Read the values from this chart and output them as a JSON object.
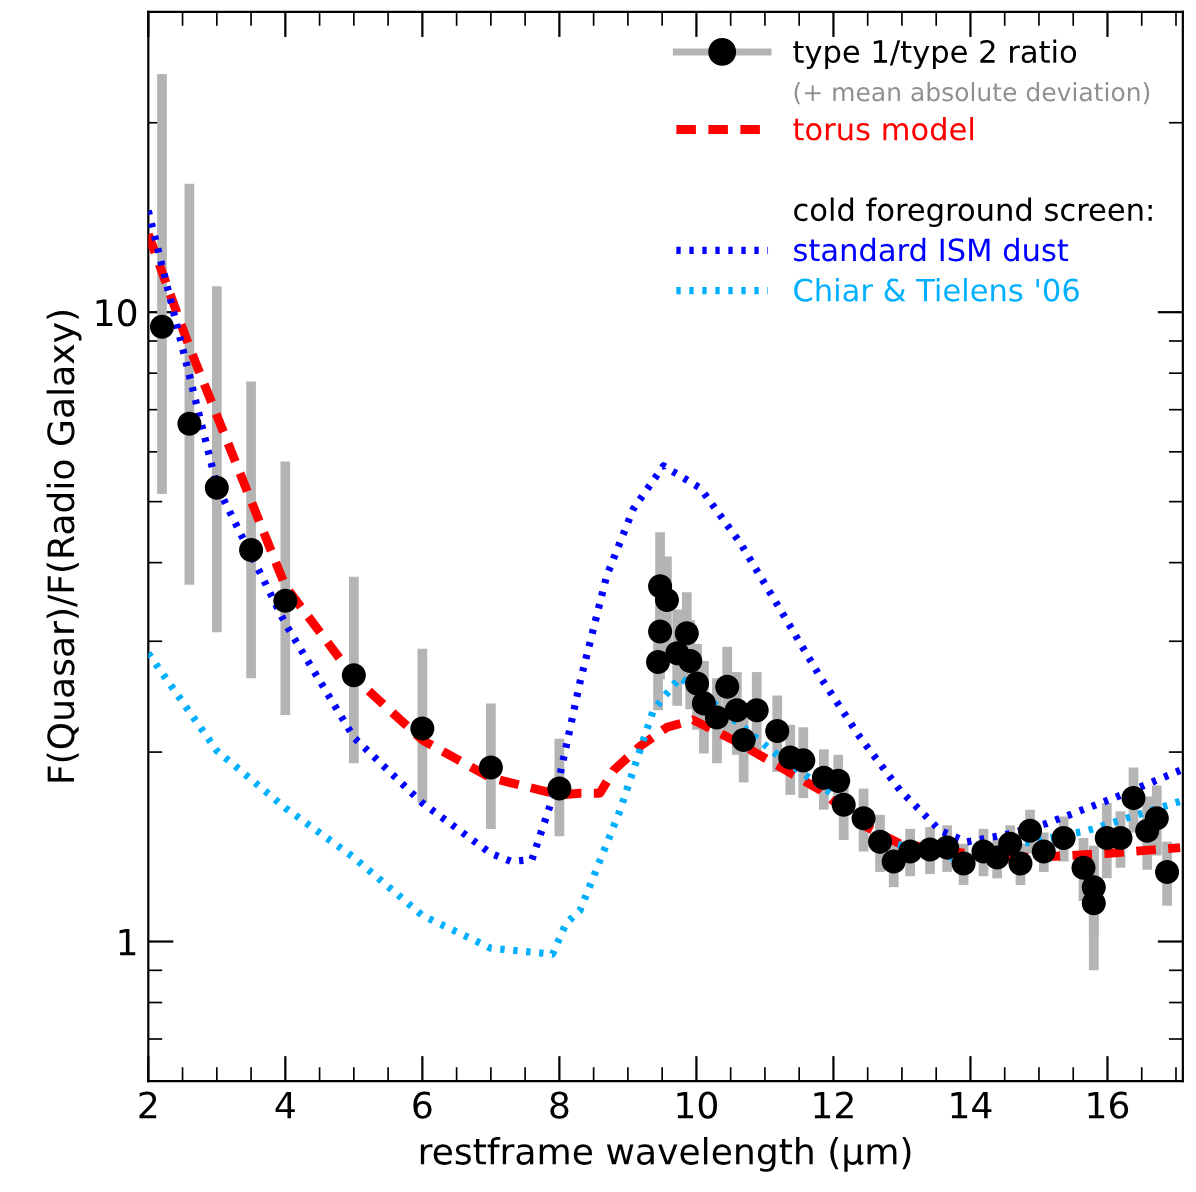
{
  "chart_data": {
    "type": "line",
    "xlabel": "restframe wavelength (μm)",
    "ylabel": "F(Quasar)/F(Radio Galaxy)",
    "log": "y",
    "xlim": [
      2,
      17.1
    ],
    "ylim": [
      0.6,
      30
    ],
    "xticks": [
      2,
      4,
      6,
      8,
      10,
      12,
      14,
      16
    ],
    "yticks": [
      1,
      10
    ],
    "grid": false,
    "legend": "top right",
    "annotations": [
      "(+ mean absolute deviation)",
      "cold foreground screen:"
    ],
    "series": [
      {
        "name": "type 1/type 2 ratio",
        "type": "scatter",
        "marker": "circle",
        "color": "#000000",
        "x": [
          2.2,
          2.6,
          3,
          3.5,
          4,
          5,
          6,
          7,
          8,
          9.47,
          9.57,
          9.47,
          9.44,
          9.72,
          9.86,
          9.91,
          10.01,
          10.11,
          10.3,
          10.45,
          10.59,
          10.69,
          10.88,
          11.18,
          11.37,
          11.56,
          11.86,
          12.07,
          12.15,
          12.44,
          12.68,
          12.88,
          13.12,
          13.41,
          13.66,
          13.9,
          14.19,
          14.39,
          14.58,
          14.73,
          14.87,
          15.07,
          15.36,
          15.65,
          15.8,
          15.8,
          15.99,
          16.19,
          16.38,
          16.58,
          16.72,
          16.87
        ],
        "values": [
          9.48,
          6.65,
          5.26,
          4.19,
          3.48,
          2.65,
          2.18,
          1.89,
          1.75,
          3.67,
          3.49,
          3.11,
          2.78,
          2.87,
          3.09,
          2.79,
          2.57,
          2.39,
          2.27,
          2.54,
          2.33,
          2.09,
          2.33,
          2.16,
          1.96,
          1.94,
          1.82,
          1.8,
          1.65,
          1.57,
          1.44,
          1.34,
          1.39,
          1.4,
          1.41,
          1.33,
          1.39,
          1.36,
          1.43,
          1.33,
          1.5,
          1.39,
          1.46,
          1.31,
          1.22,
          1.15,
          1.46,
          1.46,
          1.69,
          1.5,
          1.57,
          1.29
        ],
        "errors": [
          [
            5.14,
            23.9
          ],
          [
            3.69,
            16.0
          ],
          [
            3.1,
            11.0
          ],
          [
            2.62,
            7.76
          ],
          [
            2.29,
            5.79
          ],
          [
            1.92,
            3.8
          ],
          [
            1.66,
            2.92
          ],
          [
            1.51,
            2.39
          ],
          [
            1.47,
            2.1
          ],
          0.8,
          0.6,
          0.5,
          0.45,
          0.5,
          0.5,
          0.45,
          0.4,
          0.4,
          0.35,
          0.4,
          0.35,
          0.3,
          0.35,
          0.3,
          0.25,
          0.25,
          0.2,
          [
            1.62,
            1.98
          ],
          0.2,
          0.18,
          0.15,
          0.12,
          0.12,
          0.12,
          0.12,
          0.1,
          0.12,
          0.1,
          0.1,
          0.1,
          0.12,
          0.1,
          0.12,
          0.15,
          0.2,
          0.25,
          0.2,
          0.15,
          0.2,
          0.2,
          0.2,
          0.15
        ]
      },
      {
        "name": "torus model",
        "line_style": "dashed",
        "color": "#ff0000",
        "x": [
          2,
          2.6,
          4,
          5,
          6,
          7,
          8,
          8.3,
          8.59,
          8.79,
          9.17,
          9.57,
          9.95,
          10.54,
          11.13,
          11.81,
          12.39,
          12.97,
          13.95,
          14.92,
          15.99,
          17.06
        ],
        "values": [
          13.3,
          8.8,
          3.67,
          2.63,
          2.09,
          1.82,
          1.71,
          1.72,
          1.72,
          1.87,
          2.04,
          2.19,
          2.25,
          2.09,
          1.92,
          1.74,
          1.54,
          1.43,
          1.38,
          1.36,
          1.38,
          1.41
        ]
      },
      {
        "name": "standard ISM dust",
        "line_style": "dotted",
        "color": "#0000ff",
        "x": [
          2,
          3,
          4,
          5,
          6,
          7,
          7.3,
          7.6,
          8,
          8.3,
          8.69,
          9.08,
          9.52,
          10.06,
          10.64,
          11.23,
          11.81,
          12.39,
          12.97,
          13.56,
          13.95,
          14.53,
          15.11,
          16.09,
          17.06
        ],
        "values": [
          14.5,
          5.3,
          3.2,
          2.11,
          1.66,
          1.38,
          1.34,
          1.35,
          1.82,
          2.58,
          3.81,
          4.87,
          5.7,
          5.25,
          4.3,
          3.36,
          2.63,
          2.11,
          1.74,
          1.5,
          1.44,
          1.48,
          1.54,
          1.69,
          1.87
        ]
      },
      {
        "name": "Chiar & Tielens '06",
        "line_style": "dotted",
        "color": "#00b0ff",
        "x": [
          2,
          3,
          4,
          5,
          6,
          7,
          7.9,
          8.1,
          8.3,
          8.88,
          9.37,
          9.76,
          10.25,
          11.23,
          12.2,
          12.78,
          13.75,
          14.73,
          15.7,
          17.06
        ],
        "values": [
          2.87,
          2.01,
          1.63,
          1.36,
          1.1,
          0.976,
          0.955,
          1.07,
          1.12,
          1.61,
          2.33,
          2.63,
          2.39,
          1.96,
          1.65,
          1.44,
          1.36,
          1.43,
          1.5,
          1.67
        ]
      }
    ]
  }
}
